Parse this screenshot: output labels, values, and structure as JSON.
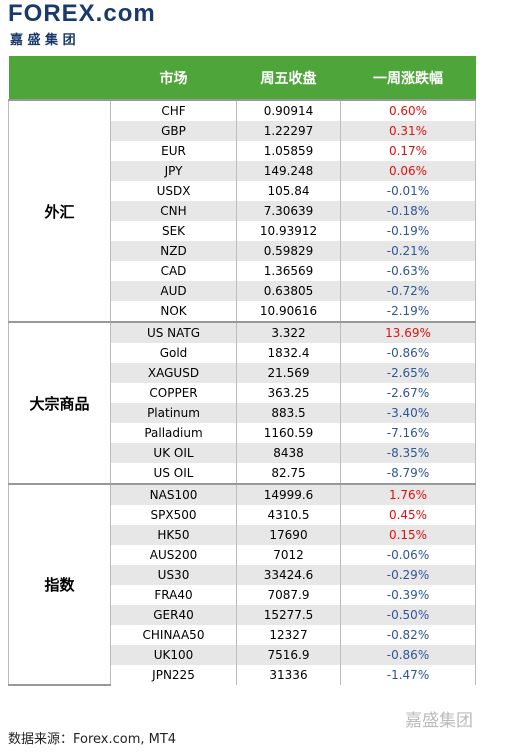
{
  "header": {
    "logo": "FOREX.com",
    "company": "嘉 盛 集 团"
  },
  "table": {
    "columns": [
      "市场",
      "周五收盘",
      "一周涨跌幅"
    ],
    "groups": [
      {
        "name": "外汇",
        "rows": [
          [
            "CHF",
            "0.90914",
            "0.60%"
          ],
          [
            "GBP",
            "1.22297",
            "0.31%"
          ],
          [
            "EUR",
            "1.05859",
            "0.17%"
          ],
          [
            "JPY",
            "149.248",
            "0.06%"
          ],
          [
            "USDX",
            "105.84",
            "-0.01%"
          ],
          [
            "CNH",
            "7.30639",
            "-0.18%"
          ],
          [
            "SEK",
            "10.93912",
            "-0.19%"
          ],
          [
            "NZD",
            "0.59829",
            "-0.21%"
          ],
          [
            "CAD",
            "1.36569",
            "-0.63%"
          ],
          [
            "AUD",
            "0.63805",
            "-0.72%"
          ],
          [
            "NOK",
            "10.90616",
            "-2.19%"
          ]
        ]
      },
      {
        "name": "大宗商品",
        "rows": [
          [
            "US NATG",
            "3.322",
            "13.69%"
          ],
          [
            "Gold",
            "1832.4",
            "-0.86%"
          ],
          [
            "XAGUSD",
            "21.569",
            "-2.65%"
          ],
          [
            "COPPER",
            "363.25",
            "-2.67%"
          ],
          [
            "Platinum",
            "883.5",
            "-3.40%"
          ],
          [
            "Palladium",
            "1160.59",
            "-7.16%"
          ],
          [
            "UK OIL",
            "8438",
            "-8.35%"
          ],
          [
            "US OIL",
            "82.75",
            "-8.79%"
          ]
        ]
      },
      {
        "name": "指数",
        "rows": [
          [
            "NAS100",
            "14999.6",
            "1.76%"
          ],
          [
            "SPX500",
            "4310.5",
            "0.45%"
          ],
          [
            "HK50",
            "17690",
            "0.15%"
          ],
          [
            "AUS200",
            "7012",
            "-0.06%"
          ],
          [
            "US30",
            "33424.6",
            "-0.29%"
          ],
          [
            "FRA40",
            "7087.9",
            "-0.39%"
          ],
          [
            "GER40",
            "15277.5",
            "-0.50%"
          ],
          [
            "CHINAA50",
            "12327",
            "-0.82%"
          ],
          [
            "UK100",
            "7516.9",
            "-0.86%"
          ],
          [
            "JPN225",
            "31336",
            "-1.47%"
          ]
        ]
      }
    ]
  },
  "footer": {
    "source": "数据来源：Forex.com, MT4",
    "watermark": "嘉盛集团"
  }
}
